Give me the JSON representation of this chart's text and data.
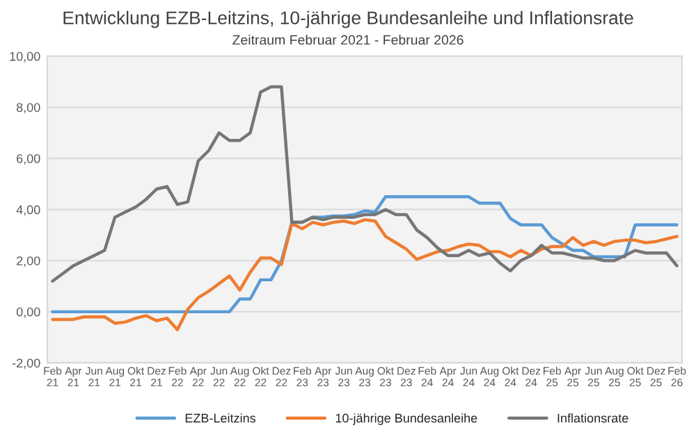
{
  "chart_data": {
    "type": "line",
    "title": "Entwicklung EZB-Leitzins, 10-jährige Bundesanleihe und Inflationsrate",
    "subtitle": "Zeitraum Februar 2021 - Februar 2026",
    "categories": [
      "Feb\n21",
      null,
      "Apr\n21",
      null,
      "Jun\n21",
      null,
      "Aug\n21",
      null,
      "Okt\n21",
      null,
      "Dez\n21",
      null,
      "Feb\n22",
      null,
      "Apr\n22",
      null,
      "Jun\n22",
      null,
      "Aug\n22",
      null,
      "Okt\n22",
      null,
      "Dez\n22",
      null,
      "Feb\n23",
      null,
      "Apr\n23",
      null,
      "Jun\n23",
      null,
      "Aug\n23",
      null,
      "Okt\n23",
      null,
      "Dez\n23",
      null,
      "Feb\n24",
      null,
      "Apr\n24",
      null,
      "Jun\n24",
      null,
      "Aug\n24",
      null,
      "Okt\n24",
      null,
      "Dez\n24",
      null,
      "Feb\n25",
      null,
      "Apr\n25",
      null,
      "Jun\n25",
      null,
      "Aug\n25",
      null,
      "Okt\n25",
      null,
      "Dez\n25",
      null,
      "Feb\n26"
    ],
    "series": [
      {
        "name": "EZB-Leitzins",
        "color": "#5b9bd5",
        "values": [
          0,
          0,
          0,
          0,
          0,
          0,
          0,
          0,
          0,
          0,
          0,
          0,
          0,
          0,
          0,
          0,
          0,
          0,
          0.5,
          0.5,
          1.25,
          1.25,
          2.0,
          3.5,
          3.5,
          3.7,
          3.7,
          3.75,
          3.75,
          3.8,
          3.95,
          3.9,
          4.5,
          4.5,
          4.5,
          4.5,
          4.5,
          4.5,
          4.5,
          4.5,
          4.5,
          4.25,
          4.25,
          4.25,
          3.65,
          3.4,
          3.4,
          3.4,
          2.9,
          2.65,
          2.4,
          2.4,
          2.15,
          2.15,
          2.15,
          2.15,
          3.4,
          3.4,
          3.4,
          3.4,
          3.4
        ]
      },
      {
        "name": "10-jährige Bundesanleihe",
        "color": "#ed7d31",
        "values": [
          -0.3,
          -0.3,
          -0.3,
          -0.2,
          -0.2,
          -0.2,
          -0.45,
          -0.4,
          -0.25,
          -0.15,
          -0.35,
          -0.25,
          -0.7,
          0.1,
          0.55,
          0.8,
          1.1,
          1.4,
          0.85,
          1.55,
          2.1,
          2.1,
          1.85,
          3.45,
          3.25,
          3.5,
          3.4,
          3.5,
          3.55,
          3.45,
          3.6,
          3.55,
          2.95,
          2.7,
          2.45,
          2.05,
          2.2,
          2.35,
          2.4,
          2.55,
          2.65,
          2.6,
          2.35,
          2.35,
          2.15,
          2.4,
          2.2,
          2.45,
          2.55,
          2.55,
          2.9,
          2.6,
          2.75,
          2.6,
          2.75,
          2.8,
          2.8,
          2.7,
          2.75,
          2.85,
          2.95
        ]
      },
      {
        "name": "Inflationsrate",
        "color": "#767676",
        "values": [
          1.2,
          1.5,
          1.8,
          2.0,
          2.2,
          2.4,
          3.7,
          3.9,
          4.1,
          4.4,
          4.8,
          4.9,
          4.2,
          4.3,
          5.9,
          6.3,
          7.0,
          6.7,
          6.7,
          7.0,
          8.6,
          8.8,
          8.8,
          3.5,
          3.5,
          3.7,
          3.6,
          3.7,
          3.7,
          3.7,
          3.8,
          3.8,
          4.0,
          3.8,
          3.8,
          3.2,
          2.9,
          2.5,
          2.2,
          2.2,
          2.4,
          2.2,
          2.3,
          1.9,
          1.6,
          2.0,
          2.2,
          2.6,
          2.3,
          2.3,
          2.2,
          2.1,
          2.1,
          2.0,
          2.0,
          2.2,
          2.4,
          2.3,
          2.3,
          2.3,
          1.8
        ]
      }
    ],
    "ylim": [
      -2,
      10
    ],
    "yticks": [
      {
        "value": -2,
        "label": "-2,00"
      },
      {
        "value": 0,
        "label": "0,00"
      },
      {
        "value": 2,
        "label": "2,00"
      },
      {
        "value": 4,
        "label": "4,00"
      },
      {
        "value": 6,
        "label": "6,00"
      },
      {
        "value": 8,
        "label": "8,00"
      },
      {
        "value": 10,
        "label": "10,00"
      }
    ],
    "grid": "y",
    "legend": "bottom",
    "marker": "none",
    "line_style": "solid"
  }
}
